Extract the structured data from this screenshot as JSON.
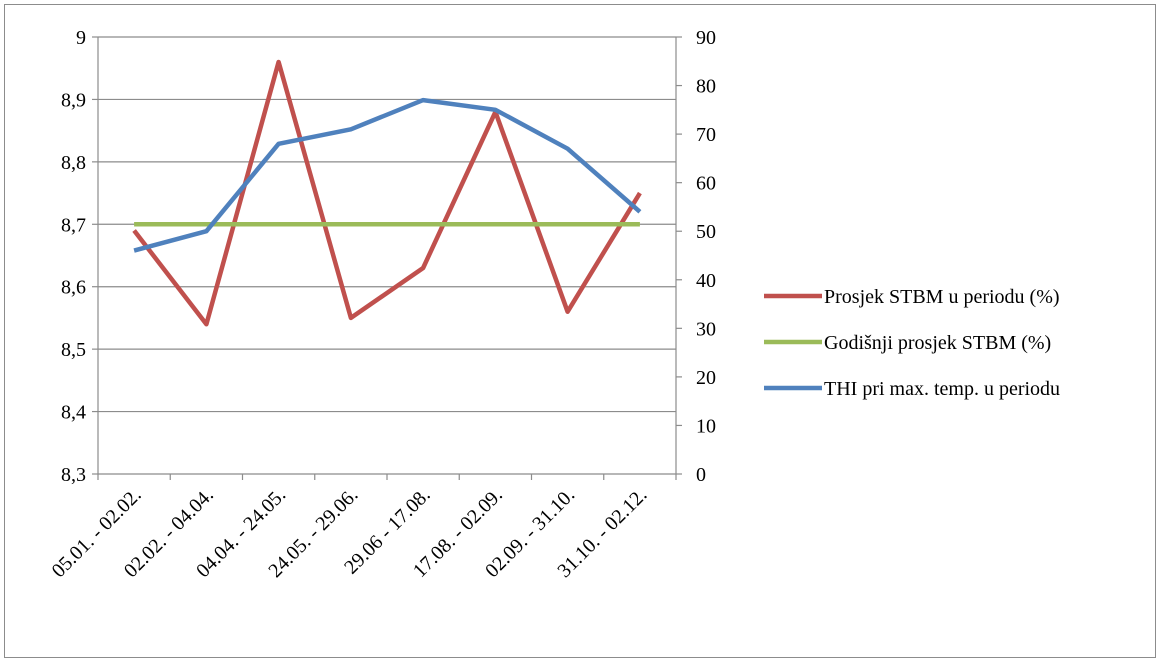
{
  "chart_data": {
    "type": "line",
    "categories": [
      "05.01. - 02.02.",
      "02.02. - 04.04.",
      "04.04. - 24.05.",
      "24.05. - 29.06.",
      "29.06 - 17.08.",
      "17.08. - 02.09.",
      "02.09. - 31.10.",
      "31.10. - 02.12."
    ],
    "y_left": {
      "min": 8.3,
      "max": 9.0,
      "step": 0.1,
      "tick_labels": [
        "8,3",
        "8,4",
        "8,5",
        "8,6",
        "8,7",
        "8,8",
        "8,9",
        "9"
      ]
    },
    "y_right": {
      "min": 0,
      "max": 90,
      "step": 10,
      "tick_labels": [
        "0",
        "10",
        "20",
        "30",
        "40",
        "50",
        "60",
        "70",
        "80",
        "90"
      ]
    },
    "grid": true,
    "legend_position": "right",
    "series": [
      {
        "name": "Prosjek STBM u periodu (%)",
        "axis": "left",
        "color": "#c0504d",
        "values": [
          8.69,
          8.54,
          8.96,
          8.55,
          8.63,
          8.88,
          8.56,
          8.75
        ]
      },
      {
        "name": "Godišnji prosjek STBM (%)",
        "axis": "left",
        "color": "#9bbb59",
        "values": [
          8.7,
          8.7,
          8.7,
          8.7,
          8.7,
          8.7,
          8.7,
          8.7
        ]
      },
      {
        "name": "THI pri max. temp. u periodu",
        "axis": "right",
        "color": "#4f81bd",
        "values": [
          46,
          50,
          68,
          71,
          77,
          75,
          67,
          54
        ]
      }
    ]
  }
}
